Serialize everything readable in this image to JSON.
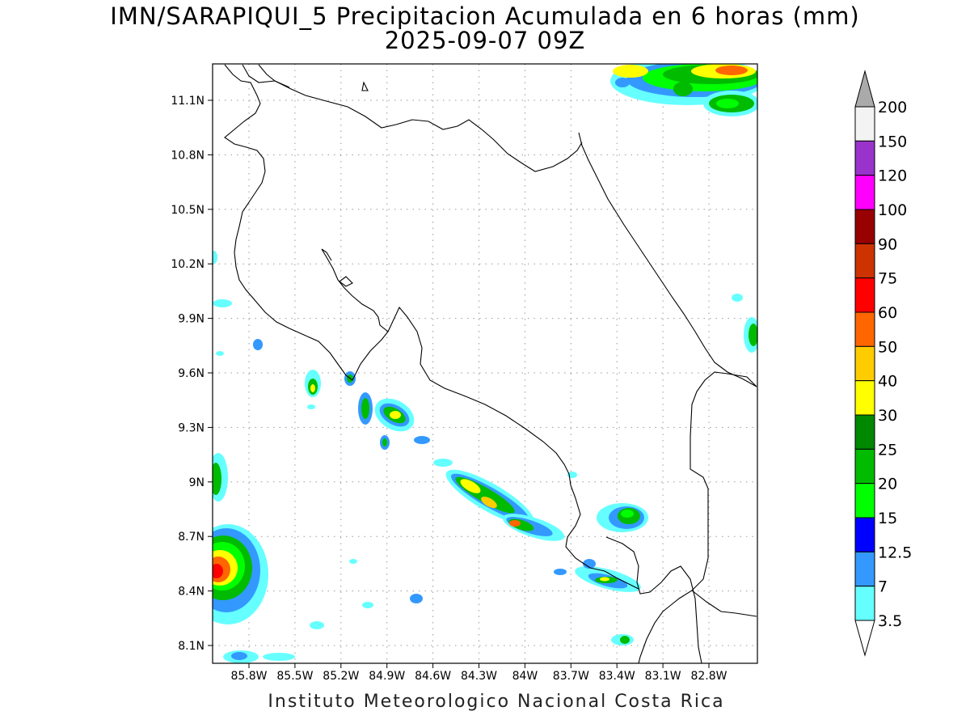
{
  "title": {
    "line1": "IMN/SARAPIQUI_5 Precipitacion Acumulada en 6 horas (mm)",
    "line2": "2025-09-07 09Z"
  },
  "credit": "Instituto Meteorologico Nacional Costa Rica",
  "axes": {
    "lon_labels": [
      "85.8W",
      "85.5W",
      "85.2W",
      "84.9W",
      "84.6W",
      "84.3W",
      "84W",
      "83.7W",
      "83.4W",
      "83.1W",
      "82.8W"
    ],
    "lat_labels": [
      "11.1N",
      "10.8N",
      "10.5N",
      "10.2N",
      "9.9N",
      "9.6N",
      "9.3N",
      "9N",
      "8.7N",
      "8.4N",
      "8.1N"
    ],
    "grid": "dotted"
  },
  "colorbar": {
    "labels": [
      "200",
      "150",
      "120",
      "100",
      "90",
      "75",
      "60",
      "50",
      "40",
      "30",
      "25",
      "20",
      "15",
      "12.5",
      "7",
      "3.5"
    ],
    "colors_top_to_bottom": [
      "#f3f3f3",
      "#9933cc",
      "#ff00ff",
      "#990000",
      "#cc3300",
      "#ff0000",
      "#ff6600",
      "#ffcc00",
      "#ffff00",
      "#008800",
      "#00bb00",
      "#00ff00",
      "#0000ff",
      "#3399ff",
      "#66ffff"
    ],
    "overflow_top_color": "#aaaaaa",
    "underflow_color": "#ffffff"
  }
}
